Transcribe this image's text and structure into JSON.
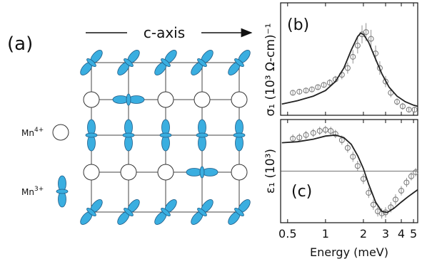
{
  "diagram": {
    "panel_label": "(a)",
    "axis_label": "c-axis",
    "legend": [
      {
        "ion": "Mn",
        "charge": "4+"
      },
      {
        "ion": "Mn",
        "charge": "3+"
      }
    ]
  },
  "chart_data": [
    {
      "type": "line",
      "panel_label": "(b)",
      "ylabel": "σ₁ (10³ Ω-cm)⁻¹",
      "log_x": true,
      "xlim": [
        0.44,
        5.4
      ],
      "xticks": [
        0.5,
        1,
        2,
        3,
        4,
        5
      ],
      "xtick_labels": false,
      "ylim": [
        0,
        1
      ],
      "series": [
        {
          "style": "markers",
          "color": "#777777",
          "x": [
            0.55,
            0.62,
            0.7,
            0.78,
            0.87,
            0.97,
            1.08,
            1.2,
            1.35,
            1.5,
            1.65,
            1.8,
            1.95,
            2.1,
            2.3,
            2.5,
            2.7,
            3.0,
            3.3,
            3.7,
            4.1,
            4.6,
            5.1
          ],
          "values": [
            0.2,
            0.21,
            0.22,
            0.23,
            0.25,
            0.27,
            0.29,
            0.32,
            0.36,
            0.42,
            0.52,
            0.62,
            0.72,
            0.74,
            0.68,
            0.55,
            0.42,
            0.3,
            0.2,
            0.12,
            0.08,
            0.05,
            0.05
          ],
          "errors": [
            0.02,
            0.02,
            0.02,
            0.02,
            0.02,
            0.02,
            0.03,
            0.03,
            0.04,
            0.05,
            0.06,
            0.07,
            0.08,
            0.08,
            0.08,
            0.07,
            0.06,
            0.05,
            0.04,
            0.03,
            0.03,
            0.02,
            0.02
          ]
        },
        {
          "style": "line",
          "color": "#222222",
          "x": [
            0.45,
            0.6,
            0.8,
            1.0,
            1.2,
            1.4,
            1.6,
            1.8,
            1.9,
            2.0,
            2.2,
            2.5,
            2.8,
            3.2,
            3.7,
            4.3,
            5.0,
            5.4
          ],
          "values": [
            0.1,
            0.13,
            0.17,
            0.22,
            0.3,
            0.42,
            0.58,
            0.7,
            0.73,
            0.72,
            0.65,
            0.5,
            0.37,
            0.25,
            0.17,
            0.12,
            0.09,
            0.08
          ]
        }
      ]
    },
    {
      "type": "line",
      "panel_label": "(c)",
      "ylabel": "ε₁ (10³)",
      "xlabel": "Energy (meV)",
      "log_x": true,
      "xlim": [
        0.44,
        5.4
      ],
      "xticks": [
        0.5,
        1,
        2,
        3,
        4,
        5
      ],
      "xtick_labels": true,
      "ylim": [
        -1,
        1
      ],
      "hline": 0,
      "series": [
        {
          "style": "markers",
          "color": "#777777",
          "x": [
            0.55,
            0.62,
            0.7,
            0.8,
            0.9,
            1.0,
            1.1,
            1.2,
            1.35,
            1.5,
            1.65,
            1.8,
            2.0,
            2.2,
            2.4,
            2.6,
            2.8,
            3.0,
            3.3,
            3.6,
            4.0,
            4.4,
            4.8,
            5.2
          ],
          "values": [
            0.63,
            0.65,
            0.7,
            0.74,
            0.78,
            0.8,
            0.78,
            0.72,
            0.6,
            0.45,
            0.28,
            0.1,
            -0.15,
            -0.42,
            -0.65,
            -0.78,
            -0.82,
            -0.8,
            -0.7,
            -0.55,
            -0.38,
            -0.22,
            -0.1,
            -0.02
          ],
          "errors": [
            0.08,
            0.08,
            0.08,
            0.08,
            0.08,
            0.08,
            0.08,
            0.08,
            0.09,
            0.09,
            0.1,
            0.1,
            0.1,
            0.1,
            0.1,
            0.1,
            0.1,
            0.1,
            0.1,
            0.1,
            0.09,
            0.09,
            0.08,
            0.08
          ]
        },
        {
          "style": "line",
          "color": "#222222",
          "x": [
            0.45,
            0.6,
            0.8,
            1.0,
            1.2,
            1.4,
            1.6,
            1.8,
            2.0,
            2.2,
            2.5,
            2.8,
            3.1,
            3.5,
            4.0,
            4.5,
            5.0,
            5.4
          ],
          "values": [
            0.55,
            0.57,
            0.62,
            0.68,
            0.7,
            0.65,
            0.52,
            0.3,
            0.05,
            -0.25,
            -0.6,
            -0.78,
            -0.8,
            -0.72,
            -0.6,
            -0.5,
            -0.42,
            -0.36
          ]
        }
      ]
    }
  ]
}
